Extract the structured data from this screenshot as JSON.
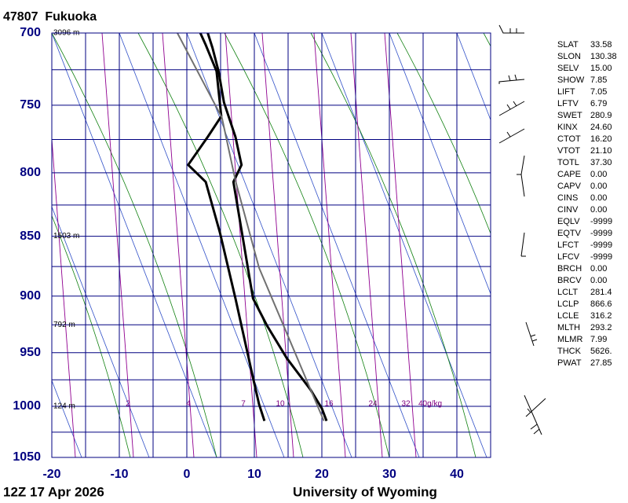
{
  "title": "47807  Fukuoka",
  "chart_data": {
    "type": "skewt",
    "yscale": "log",
    "ylim": [
      1050,
      700
    ],
    "yticks": [
      700,
      750,
      800,
      850,
      900,
      950,
      1000,
      1050
    ],
    "ygrid": [
      700,
      725,
      750,
      775,
      800,
      825,
      850,
      875,
      900,
      925,
      950,
      975,
      1000,
      1025,
      1050
    ],
    "xlim": [
      -20,
      45
    ],
    "xticks": [
      -20,
      -10,
      0,
      10,
      20,
      30,
      40
    ],
    "xgrid": [
      -20,
      -15,
      -10,
      -5,
      0,
      5,
      10,
      15,
      20,
      25,
      30,
      35,
      40,
      45
    ],
    "series": [
      {
        "color": "#000000",
        "pressure": [
          1014,
          1002,
          984,
          955,
          926,
          902,
          807,
          794,
          773,
          748,
          726,
          710,
          700
        ],
        "temperature": [
          20.7,
          20.0,
          18.3,
          14.8,
          11.9,
          9.8,
          6.9,
          8.1,
          7.2,
          5.5,
          4.7,
          3.8,
          3.1
        ]
      },
      {
        "color": "#000000",
        "pressure": [
          1014,
          998,
          973,
          902,
          847,
          807,
          794,
          773,
          758,
          726,
          708,
          700
        ],
        "temperature": [
          11.5,
          10.7,
          9.8,
          7.2,
          4.9,
          2.8,
          0.2,
          3.1,
          5.1,
          4.4,
          2.8,
          2.0
        ]
      },
      {
        "color": "#707070",
        "pressure": [
          1014,
          876,
          806,
          759,
          700
        ],
        "temperature": [
          20.3,
          10.7,
          7.2,
          5.2,
          -1.4
        ]
      }
    ],
    "heights": [
      {
        "pressure": 700,
        "label": "3096 m"
      },
      {
        "pressure": 850,
        "label": "1503 m"
      },
      {
        "pressure": 925,
        "label": "792 m"
      },
      {
        "pressure": 1000,
        "label": "124 m"
      }
    ],
    "mixing_ratio_labels": [
      2,
      4,
      7,
      10,
      16,
      24,
      32,
      {
        "value": 40,
        "label": "40g/kg"
      }
    ]
  },
  "indices": [
    {
      "label": "SLAT",
      "value": "33.58"
    },
    {
      "label": "SLON",
      "value": "130.38"
    },
    {
      "label": "SELV",
      "value": "15.00"
    },
    {
      "label": "SHOW",
      "value": "7.85"
    },
    {
      "label": "LIFT",
      "value": "7.05"
    },
    {
      "label": "LFTV",
      "value": "6.79"
    },
    {
      "label": "SWET",
      "value": "280.9"
    },
    {
      "label": "KINX",
      "value": "24.60"
    },
    {
      "label": "CTOT",
      "value": "16.20"
    },
    {
      "label": "VTOT",
      "value": "21.10"
    },
    {
      "label": "TOTL",
      "value": "37.30"
    },
    {
      "label": "CAPE",
      "value": "0.00"
    },
    {
      "label": "CAPV",
      "value": "0.00"
    },
    {
      "label": "CINS",
      "value": "0.00"
    },
    {
      "label": "CINV",
      "value": "0.00"
    },
    {
      "label": "EQLV",
      "value": "-9999"
    },
    {
      "label": "EQTV",
      "value": "-9999"
    },
    {
      "label": "LFCT",
      "value": "-9999"
    },
    {
      "label": "LFCV",
      "value": "-9999"
    },
    {
      "label": "BRCH",
      "value": "0.00"
    },
    {
      "label": "BRCV",
      "value": "0.00"
    },
    {
      "label": "LCLT",
      "value": "281.4"
    },
    {
      "label": "LCLP",
      "value": "866.6"
    },
    {
      "label": "LCLE",
      "value": "316.2"
    },
    {
      "label": "MLTH",
      "value": "293.2"
    },
    {
      "label": "MLMR",
      "value": "7.99"
    },
    {
      "label": "THCK",
      "value": "5626."
    },
    {
      "label": "PWAT",
      "value": "27.85"
    }
  ],
  "footer": {
    "time": "12Z 17 Apr 2026",
    "source": "University of Wyoming"
  }
}
